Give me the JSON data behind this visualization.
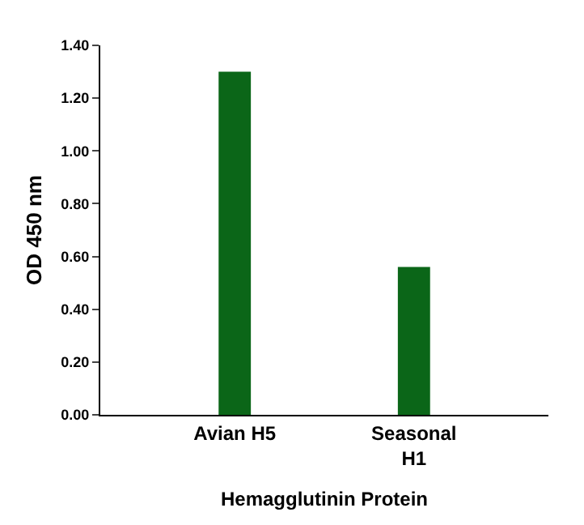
{
  "chart_data": {
    "type": "bar",
    "xlabel": "Hemagglutinin Protein",
    "ylabel": "OD 450 nm",
    "categories": [
      "Avian H5",
      "Seasonal\nH1"
    ],
    "values": [
      1.3,
      0.56
    ],
    "color": "#0b6618",
    "ylim": [
      0,
      1.4
    ],
    "yticks": [
      {
        "value": 0,
        "label": "0.00"
      },
      {
        "value": 0.2,
        "label": "0.20"
      },
      {
        "value": 0.4,
        "label": "0.40"
      },
      {
        "value": 0.6,
        "label": "0.60"
      },
      {
        "value": 0.8,
        "label": "0.80"
      },
      {
        "value": 1.0,
        "label": "1.00"
      },
      {
        "value": 1.2,
        "label": "1.20"
      },
      {
        "value": 1.4,
        "label": "1.40"
      }
    ],
    "legend": false
  }
}
